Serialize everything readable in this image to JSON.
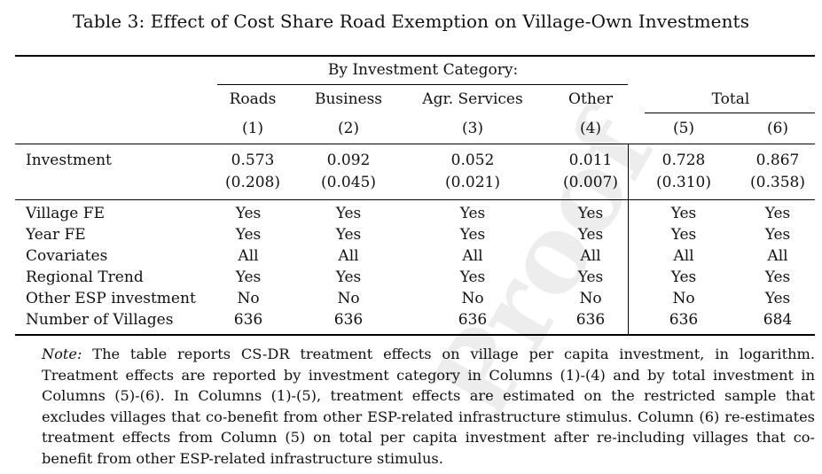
{
  "title": "Table 3: Effect of Cost Share Road Exemption on Village-Own Investments",
  "watermark": "Proof",
  "group_header": "By Investment Category:",
  "total_header": "Total",
  "columns": [
    {
      "name": "Roads",
      "num": "(1)"
    },
    {
      "name": "Business",
      "num": "(2)"
    },
    {
      "name": "Agr. Services",
      "num": "(3)"
    },
    {
      "name": "Other",
      "num": "(4)"
    },
    {
      "name": "",
      "num": "(5)"
    },
    {
      "name": "",
      "num": "(6)"
    }
  ],
  "investment": {
    "label": "Investment",
    "coef": [
      "0.573",
      "0.092",
      "0.052",
      "0.011",
      "0.728",
      "0.867"
    ],
    "se": [
      "(0.208)",
      "(0.045)",
      "(0.021)",
      "(0.007)",
      "(0.310)",
      "(0.358)"
    ]
  },
  "controls": [
    {
      "label": "Village FE",
      "values": [
        "Yes",
        "Yes",
        "Yes",
        "Yes",
        "Yes",
        "Yes"
      ]
    },
    {
      "label": "Year FE",
      "values": [
        "Yes",
        "Yes",
        "Yes",
        "Yes",
        "Yes",
        "Yes"
      ]
    },
    {
      "label": "Covariates",
      "values": [
        "All",
        "All",
        "All",
        "All",
        "All",
        "All"
      ]
    },
    {
      "label": "Regional Trend",
      "values": [
        "Yes",
        "Yes",
        "Yes",
        "Yes",
        "Yes",
        "Yes"
      ]
    },
    {
      "label": "Other ESP investment",
      "values": [
        "No",
        "No",
        "No",
        "No",
        "No",
        "Yes"
      ]
    },
    {
      "label": "Number of Villages",
      "values": [
        "636",
        "636",
        "636",
        "636",
        "636",
        "684"
      ]
    }
  ],
  "note": {
    "lead": "Note:",
    "text": "The table reports CS-DR treatment effects on village per capita investment, in logarithm. Treatment effects are reported by investment category in Columns (1)-(4) and by total investment in Columns (5)-(6). In Columns (1)-(5), treatment effects are estimated on the restricted sample that excludes villages that co-benefit from other ESP-related infrastructure stimulus. Column (6) re-estimates treatment effects from Column (5) on total per capita investment after re-including villages that co-benefit from other ESP-related infrastructure stimulus."
  }
}
